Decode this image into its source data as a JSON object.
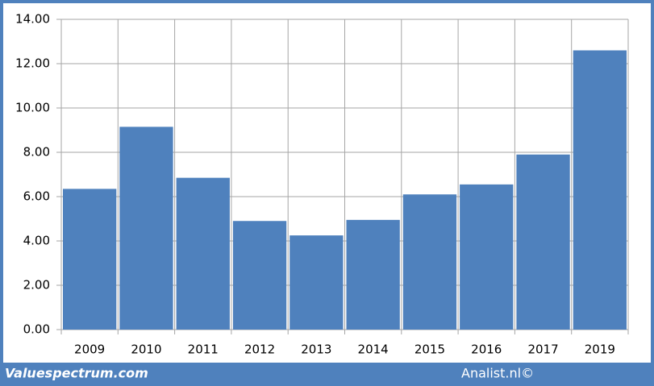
{
  "chart_data": {
    "type": "bar",
    "categories": [
      "2009",
      "2010",
      "2011",
      "2012",
      "2013",
      "2014",
      "2015",
      "2016",
      "2017",
      "2019"
    ],
    "values": [
      6.35,
      9.15,
      6.85,
      4.9,
      4.25,
      4.95,
      6.1,
      6.55,
      7.9,
      12.6
    ],
    "color": "#4f81bd",
    "ylim": [
      0,
      14
    ],
    "yticks": [
      {
        "value": 0,
        "label": "0.00"
      },
      {
        "value": 2,
        "label": "2.00"
      },
      {
        "value": 4,
        "label": "4.00"
      },
      {
        "value": 6,
        "label": "6.00"
      },
      {
        "value": 8,
        "label": "8.00"
      },
      {
        "value": 10,
        "label": "10.00"
      },
      {
        "value": 12,
        "label": "12.00"
      },
      {
        "value": 14,
        "label": "14.00"
      }
    ],
    "grid": true
  },
  "footer": {
    "left": "Valuespectrum.com",
    "right": "Analist.nl©"
  }
}
